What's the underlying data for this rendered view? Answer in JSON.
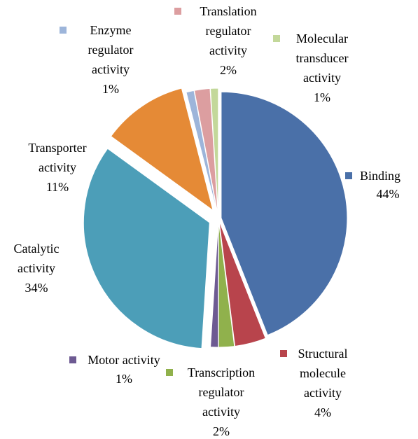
{
  "chart_data": {
    "type": "pie",
    "title": "",
    "slices": [
      {
        "label": "Binding",
        "value": 44,
        "display": "44%",
        "color": "#4a70a8"
      },
      {
        "label": "Structural molecule activity",
        "value": 4,
        "display": "4%",
        "color": "#b8444c"
      },
      {
        "label": "Transcription regulator activity",
        "value": 2,
        "display": "2%",
        "color": "#90b14c"
      },
      {
        "label": "Motor activity",
        "value": 1,
        "display": "1%",
        "color": "#6d5a92"
      },
      {
        "label": "Catalytic activity",
        "value": 34,
        "display": "34%",
        "color": "#4c9eb8"
      },
      {
        "label": "Transporter activity",
        "value": 11,
        "display": "11%",
        "color": "#e58a36"
      },
      {
        "label": "Enzyme regulator activity",
        "value": 1,
        "display": "1%",
        "color": "#9db5da"
      },
      {
        "label": "Translation regulator activity",
        "value": 2,
        "display": "2%",
        "color": "#dc9ea0"
      },
      {
        "label": "Molecular transducer activity",
        "value": 1,
        "display": "1%",
        "color": "#c3d89a"
      }
    ],
    "legend": "none",
    "data_labels": "outside, with leader markers"
  }
}
